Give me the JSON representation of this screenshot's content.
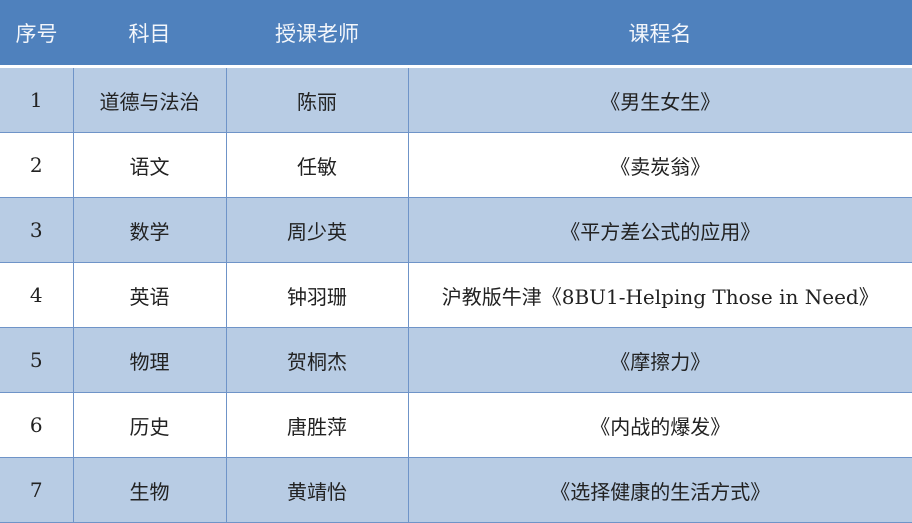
{
  "table": {
    "headers": [
      "序号",
      "科目",
      "授课老师",
      "课程名"
    ],
    "rows": [
      [
        "1",
        "道德与法治",
        "陈丽",
        "《男生女生》"
      ],
      [
        "2",
        "语文",
        "任敏",
        "《卖炭翁》"
      ],
      [
        "3",
        "数学",
        "周少英",
        "《平方差公式的应用》"
      ],
      [
        "4",
        "英语",
        "钟羽珊",
        "沪教版牛津《8BU1-Helping Those in Need》"
      ],
      [
        "5",
        "物理",
        "贺桐杰",
        "《摩擦力》"
      ],
      [
        "6",
        "历史",
        "唐胜萍",
        "《内战的爆发》"
      ],
      [
        "7",
        "生物",
        "黄靖怡",
        "《选择健康的生活方式》"
      ]
    ]
  },
  "colors": {
    "header": "#4f81bd",
    "band": "#b8cce4"
  }
}
